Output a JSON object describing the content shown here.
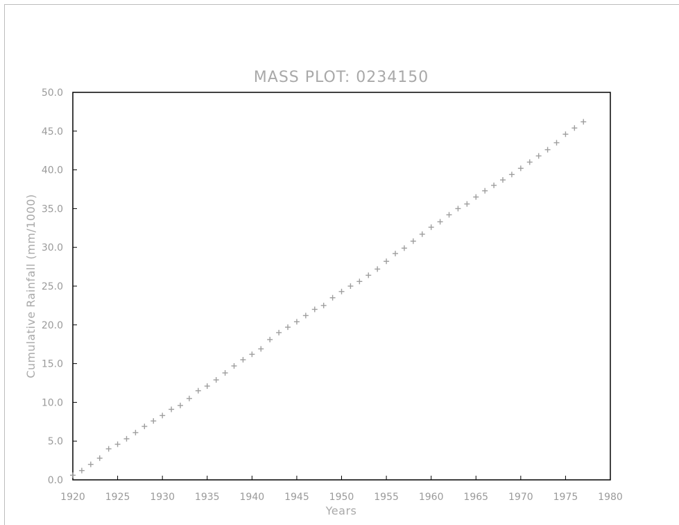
{
  "chart_data": {
    "type": "scatter",
    "title": "MASS PLOT: 0234150",
    "xlabel": "Years",
    "ylabel": "Cumulative Rainfall (mm/1000)",
    "xlim": [
      1920,
      1980
    ],
    "ylim": [
      0,
      50
    ],
    "xticks": [
      "1920",
      "1925",
      "1930",
      "1935",
      "1940",
      "1945",
      "1950",
      "1955",
      "1960",
      "1965",
      "1970",
      "1975",
      "1980"
    ],
    "yticks": [
      "0.0",
      "5.0",
      "10.0",
      "15.0",
      "20.0",
      "25.0",
      "30.0",
      "35.0",
      "40.0",
      "45.0",
      "50.0"
    ],
    "grid": false,
    "marker": "cross",
    "marker_color": "#9e9e9e",
    "x": [
      1920,
      1921,
      1922,
      1923,
      1924,
      1925,
      1926,
      1927,
      1928,
      1929,
      1930,
      1931,
      1932,
      1933,
      1934,
      1935,
      1936,
      1937,
      1938,
      1939,
      1940,
      1941,
      1942,
      1943,
      1944,
      1945,
      1946,
      1947,
      1948,
      1949,
      1950,
      1951,
      1952,
      1953,
      1954,
      1955,
      1956,
      1957,
      1958,
      1959,
      1960,
      1961,
      1962,
      1963,
      1964,
      1965,
      1966,
      1967,
      1968,
      1969,
      1970,
      1971,
      1972,
      1973,
      1974,
      1975,
      1976,
      1977
    ],
    "y": [
      0.6,
      1.2,
      2.0,
      2.8,
      4.0,
      4.6,
      5.3,
      6.1,
      6.9,
      7.6,
      8.3,
      9.1,
      9.6,
      10.5,
      11.5,
      12.1,
      12.9,
      13.8,
      14.7,
      15.5,
      16.2,
      16.9,
      18.1,
      19.0,
      19.7,
      20.4,
      21.2,
      22.0,
      22.5,
      23.5,
      24.3,
      25.0,
      25.6,
      26.4,
      27.2,
      28.2,
      29.2,
      29.9,
      30.8,
      31.7,
      32.6,
      33.3,
      34.2,
      35.0,
      35.6,
      36.5,
      37.3,
      38.0,
      38.7,
      39.4,
      40.2,
      41.0,
      41.8,
      42.6,
      43.5,
      44.6,
      45.4,
      46.2
    ]
  }
}
